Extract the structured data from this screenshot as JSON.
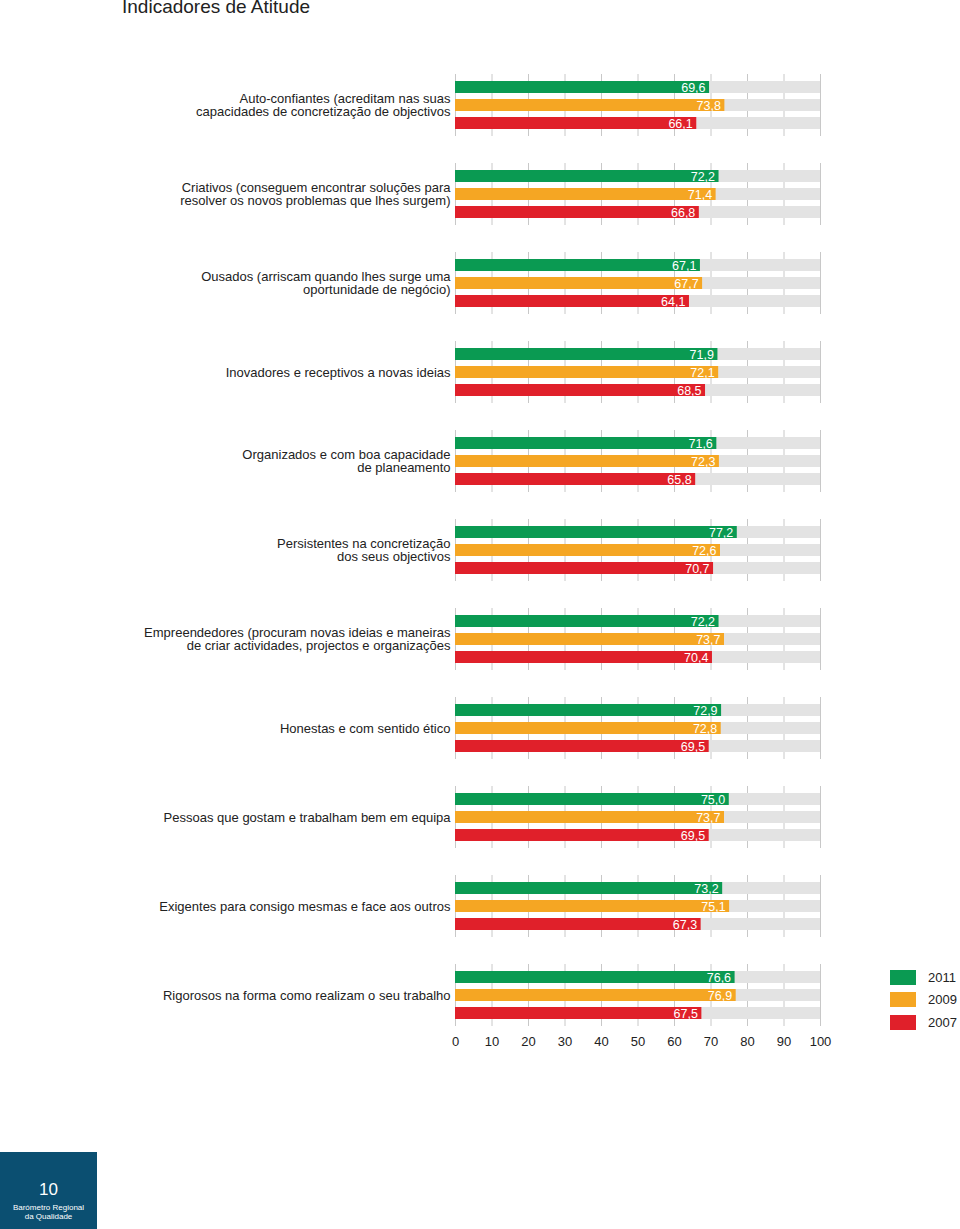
{
  "chart_data": {
    "type": "bar",
    "title": "Indicadores de Atitude",
    "orientation": "horizontal",
    "categories": [
      "Auto-confiantes (acreditam nas suas\ncapacidades de concretização de objectivos",
      "Criativos (conseguem encontrar soluções para\nresolver os novos problemas que lhes surgem)",
      "Ousados (arriscam quando lhes surge uma\noportunidade de negócio)",
      "Inovadores e receptivos a novas ideias",
      "Organizados e com boa capacidade\nde planeamento",
      "Persistentes na concretização\ndos seus objectivos",
      "Empreendedores (procuram novas ideias e maneiras\nde criar actividades, projectos e organizações",
      "Honestas e com sentido ético",
      "Pessoas que gostam e trabalham bem em equipa",
      "Exigentes para consigo mesmas e face aos outros",
      "Rigorosos na forma como realizam o seu trabalho"
    ],
    "series": [
      {
        "name": "2011",
        "color": "#0a9a52",
        "values": [
          69.6,
          72.2,
          67.1,
          71.9,
          71.6,
          77.2,
          72.2,
          72.9,
          75.0,
          73.2,
          76.6
        ],
        "value_labels": [
          "69,6",
          "72,2",
          "67,1",
          "71,9",
          "71,6",
          "77,2",
          "72,2",
          "72,9",
          "75,0",
          "73,2",
          "76,6"
        ]
      },
      {
        "name": "2009",
        "color": "#f5a623",
        "values": [
          73.8,
          71.4,
          67.7,
          72.1,
          72.3,
          72.6,
          73.7,
          72.8,
          73.7,
          75.1,
          76.9
        ],
        "value_labels": [
          "73,8",
          "71,4",
          "67,7",
          "72,1",
          "72,3",
          "72,6",
          "73,7",
          "72,8",
          "73,7",
          "75,1",
          "76,9"
        ]
      },
      {
        "name": "2007",
        "color": "#e0202a",
        "values": [
          66.1,
          66.8,
          64.1,
          68.5,
          65.8,
          70.7,
          70.4,
          69.5,
          69.5,
          67.3,
          67.5
        ],
        "value_labels": [
          "66,1",
          "66,8",
          "64,1",
          "68,5",
          "65,8",
          "70,7",
          "70,4",
          "69,5",
          "69,5",
          "67,3",
          "67,5"
        ]
      }
    ],
    "xlim": [
      0,
      100
    ],
    "xticks": [
      0,
      10,
      20,
      30,
      40,
      50,
      60,
      70,
      80,
      90,
      100
    ],
    "grid": true,
    "data_labels": true,
    "legend": "right"
  },
  "page": {
    "number": "10",
    "publication": "Barómetro Regional\nda Qualidade"
  }
}
